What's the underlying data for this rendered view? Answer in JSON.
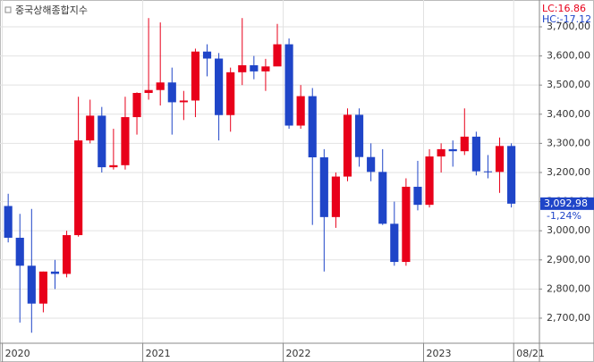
{
  "chart_data": {
    "type": "candlestick",
    "title": "중국상해종합지수",
    "annotations": {
      "lc": "LC:16.86",
      "hc": "HC:-17.12",
      "change": "-1,24%"
    },
    "last_label": {
      "value": 3092.98,
      "label": "3,092,98"
    },
    "up_color": "#e8001a",
    "down_color": "#1f45c8",
    "open": [
      3085,
      2976,
      2880,
      2750,
      2860,
      2852,
      2985,
      3310,
      3395,
      3218,
      3225,
      3390,
      3473,
      3483,
      3509,
      3441,
      3447,
      3615,
      3591,
      3397,
      3544,
      3568,
      3547,
      3564,
      3640,
      3361,
      3462,
      3252,
      3047,
      3186,
      3398,
      3253,
      3202,
      3024,
      2893,
      3151,
      3089,
      3255,
      3280,
      3273,
      3323,
      3204,
      3202,
      3291
    ],
    "high": [
      3127,
      3058,
      3075,
      2860,
      2900,
      3000,
      3460,
      3450,
      3425,
      3350,
      3460,
      3475,
      3730,
      3715,
      3560,
      3480,
      3625,
      3640,
      3610,
      3560,
      3730,
      3600,
      3590,
      3710,
      3660,
      3500,
      3490,
      3280,
      3200,
      3420,
      3420,
      3300,
      3280,
      3100,
      3180,
      3240,
      3280,
      3300,
      3310,
      3420,
      3340,
      3260,
      3320,
      3300
    ],
    "low": [
      2960,
      2685,
      2650,
      2720,
      2800,
      2840,
      2980,
      3300,
      3200,
      3210,
      3210,
      3330,
      3450,
      3430,
      3330,
      3380,
      3390,
      3530,
      3310,
      3340,
      3500,
      3520,
      3480,
      3570,
      3350,
      3350,
      3020,
      2860,
      3010,
      3170,
      3220,
      3170,
      3020,
      2880,
      2880,
      3070,
      3080,
      3200,
      3220,
      3260,
      3190,
      3180,
      3130,
      3080
    ],
    "close": [
      2976,
      2880,
      2750,
      2860,
      2852,
      2985,
      3310,
      3395,
      3218,
      3225,
      3390,
      3473,
      3483,
      3509,
      3441,
      3447,
      3615,
      3591,
      3397,
      3544,
      3568,
      3547,
      3564,
      3640,
      3361,
      3462,
      3252,
      3047,
      3186,
      3398,
      3253,
      3202,
      3024,
      2893,
      3151,
      3089,
      3255,
      3280,
      3273,
      3323,
      3204,
      3202,
      3291,
      3092.98
    ],
    "xlim": [
      -0.2,
      45.9
    ],
    "xticks": [
      {
        "value": 0,
        "label": "2020"
      },
      {
        "value": 12,
        "label": "2021"
      },
      {
        "value": 24,
        "label": "2022"
      },
      {
        "value": 36,
        "label": "2023"
      },
      {
        "value": 43.7,
        "label": "08/21"
      }
    ],
    "ylim": [
      2614,
      3792
    ],
    "yticks": [
      {
        "value": 2700,
        "label": "2,700,00"
      },
      {
        "value": 2800,
        "label": "2,800,00"
      },
      {
        "value": 2900,
        "label": "2,900,00"
      },
      {
        "value": 3000,
        "label": "3,000,00"
      },
      {
        "value": 3100,
        "label": "3,100,00"
      },
      {
        "value": 3200,
        "label": "3,200,00"
      },
      {
        "value": 3300,
        "label": "3,300,00"
      },
      {
        "value": 3400,
        "label": "3,400,00"
      },
      {
        "value": 3500,
        "label": "3,500,00"
      },
      {
        "value": 3600,
        "label": "3,600,00"
      },
      {
        "value": 3700,
        "label": "3,700,00"
      }
    ],
    "grid": true
  }
}
